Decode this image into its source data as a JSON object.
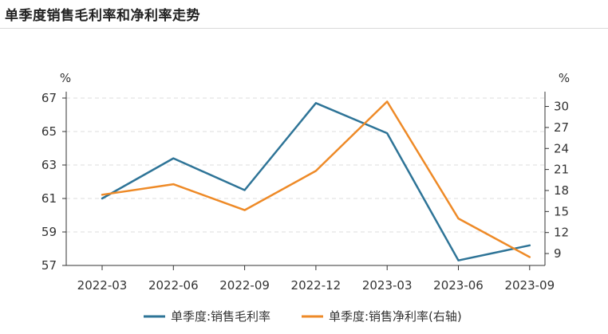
{
  "title": "单季度销售毛利率和净利率走势",
  "chart_data": {
    "type": "line",
    "categories": [
      "2022-03",
      "2022-06",
      "2022-09",
      "2022-12",
      "2023-03",
      "2023-06",
      "2023-09"
    ],
    "left_axis": {
      "unit": "%",
      "ylim": [
        57,
        67
      ],
      "ticks": [
        57,
        59,
        61,
        63,
        65,
        67
      ]
    },
    "right_axis": {
      "unit": "%",
      "ylim": [
        7.3,
        31.2
      ],
      "ticks": [
        9,
        12,
        15,
        18,
        21,
        24,
        27,
        30
      ]
    },
    "grid": true,
    "legend_position": "bottom",
    "series": [
      {
        "name": "单季度:销售毛利率",
        "axis": "left",
        "color": "#2e7497",
        "values": [
          61.0,
          63.4,
          61.5,
          66.7,
          64.9,
          57.3,
          58.2
        ]
      },
      {
        "name": "单季度:销售净利率(右轴)",
        "axis": "right",
        "color": "#ee8a27",
        "values": [
          17.4,
          18.9,
          15.2,
          20.8,
          30.7,
          14.0,
          8.5
        ]
      }
    ]
  }
}
